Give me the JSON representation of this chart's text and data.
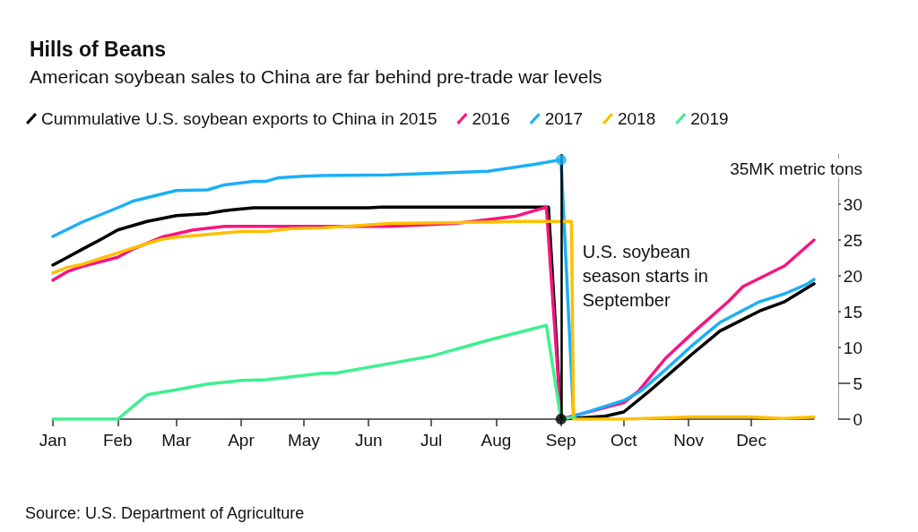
{
  "chart_data": {
    "type": "line",
    "title": "Hills of Beans",
    "subtitle": "American soybean sales to China are far behind pre-trade war levels",
    "legend": "top left",
    "marker": "none",
    "xlim": [
      "--01-01",
      "--12-31"
    ],
    "xticks": [
      {
        "value": "--01-01",
        "label": "Jan"
      },
      {
        "value": "--02-01",
        "label": "Feb"
      },
      {
        "value": "--03-01",
        "label": "Mar"
      },
      {
        "value": "--04-01",
        "label": "Apr"
      },
      {
        "value": "--05-01",
        "label": "May"
      },
      {
        "value": "--06-01",
        "label": "Jun"
      },
      {
        "value": "--07-01",
        "label": "Jul"
      },
      {
        "value": "--08-01",
        "label": "Aug"
      },
      {
        "value": "--09-01",
        "label": "Sep"
      },
      {
        "value": "--10-01",
        "label": "Oct"
      },
      {
        "value": "--11-01",
        "label": "Nov"
      },
      {
        "value": "--12-01",
        "label": "Dec"
      }
    ],
    "ylim": [
      0,
      37
    ],
    "yticks": [
      0,
      5,
      10,
      15,
      20,
      25,
      30,
      {
        "value": 35,
        "label": "35MK metric tons"
      }
    ],
    "series": [
      {
        "name": "Cummulative U.S. soybean exports to China in 2015",
        "color": "#000000",
        "x": [
          "--01-01",
          "--01-08",
          "--01-15",
          "--01-24",
          "--02-01",
          "--02-15",
          "--03-01",
          "--03-16",
          "--03-24",
          "--04-07",
          "--06-01",
          "--06-07",
          "--08-26",
          "--09-01",
          "--09-22",
          "--10-01",
          "--10-12",
          "--11-02",
          "--11-16",
          "--12-05",
          "--12-17",
          "--12-31"
        ],
        "values": [
          21.5,
          22.6,
          23.7,
          25.1,
          26.4,
          27.6,
          28.4,
          28.7,
          29.1,
          29.5,
          29.5,
          29.6,
          29.6,
          0,
          0.4,
          1.0,
          3.6,
          8.9,
          12.3,
          15.1,
          16.4,
          18.9
        ]
      },
      {
        "name": "2016",
        "color": "#f7157f",
        "x": [
          "--01-01",
          "--01-08",
          "--01-15",
          "--02-01",
          "--02-08",
          "--02-22",
          "--03-09",
          "--03-24",
          "--06-11",
          "--07-12",
          "--08-10",
          "--08-25",
          "--09-01",
          "--10-01",
          "--10-08",
          "--10-21",
          "--11-04",
          "--11-20",
          "--11-27",
          "--12-17",
          "--12-31"
        ],
        "values": [
          19.4,
          20.6,
          21.3,
          22.6,
          23.7,
          25.4,
          26.4,
          26.9,
          26.9,
          27.3,
          28.3,
          29.6,
          0,
          2.3,
          3.9,
          8.5,
          12.3,
          16.4,
          18.5,
          21.4,
          25.0
        ]
      },
      {
        "name": "2017",
        "color": "#1ab0f5",
        "x": [
          "--01-01",
          "--01-15",
          "--02-01",
          "--02-08",
          "--02-15",
          "--03-01",
          "--03-16",
          "--03-24",
          "--04-07",
          "--04-13",
          "--04-19",
          "--05-01",
          "--05-10",
          "--06-11",
          "--07-28",
          "--08-20",
          "--09-01",
          "--09-07",
          "--10-01",
          "--10-09",
          "--10-21",
          "--11-02",
          "--11-16",
          "--12-05",
          "--12-17",
          "--12-28",
          "--12-31"
        ],
        "values": [
          25.5,
          27.5,
          29.5,
          30.4,
          30.9,
          31.9,
          32,
          32.7,
          33.2,
          33.2,
          33.7,
          33.9,
          34,
          34.1,
          34.6,
          35.6,
          36.2,
          0.4,
          2.6,
          3.9,
          6.9,
          10.1,
          13.5,
          16.4,
          17.5,
          18.9,
          19.5
        ]
      },
      {
        "name": "2018",
        "color": "#ffbf00",
        "x": [
          "--01-01",
          "--01-08",
          "--01-15",
          "--02-01",
          "--02-15",
          "--02-22",
          "--03-01",
          "--03-09",
          "--04-01",
          "--04-13",
          "--04-25",
          "--05-10",
          "--06-11",
          "--07-28",
          "--08-10",
          "--09-06",
          "--09-07",
          "--10-01",
          "--11-01",
          "--12-01",
          "--12-16",
          "--12-31"
        ],
        "values": [
          20.4,
          21.2,
          21.6,
          23.2,
          24.5,
          25.1,
          25.4,
          25.6,
          26.2,
          26.2,
          26.6,
          26.7,
          27.3,
          27.5,
          27.6,
          27.6,
          0,
          0,
          0.3,
          0.3,
          0.1,
          0.3
        ]
      },
      {
        "name": "2019",
        "color": "#3ef090",
        "x": [
          "--01-01",
          "--02-01",
          "--02-15",
          "--03-01",
          "--03-16",
          "--04-01",
          "--04-13",
          "--05-10",
          "--05-16",
          "--07-01",
          "--07-28",
          "--08-25",
          "--09-01",
          "--09-07"
        ],
        "values": [
          0,
          0,
          3.4,
          4.1,
          4.9,
          5.4,
          5.5,
          6.4,
          6.4,
          8.8,
          11,
          13.1,
          0,
          0.3
        ]
      },
      {
        "type": "scatter",
        "marker": "circle",
        "color": "#1ab0f5",
        "x": [
          "--09-01"
        ],
        "values": [
          36.2
        ]
      },
      {
        "type": "scatter",
        "marker": "circle",
        "color": "#000000",
        "x": [
          "--09-01"
        ],
        "values": [
          0
        ]
      }
    ],
    "ref_lines": [
      {
        "axis": "x",
        "value": "--09-01",
        "color": "#000000"
      }
    ],
    "annotations": [
      {
        "text": "U.S. soybean season starts in September",
        "x": "--09-01",
        "y": 20
      },
      "Source: U.S. Department of Agriculture"
    ]
  }
}
